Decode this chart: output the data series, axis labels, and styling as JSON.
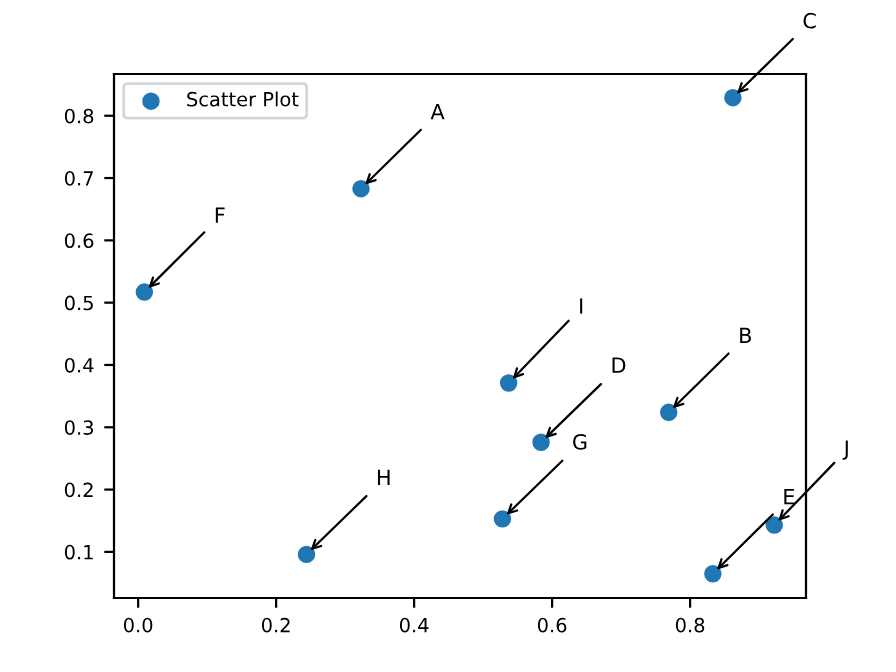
{
  "chart_data": {
    "type": "scatter",
    "x": [
      0.323,
      0.769,
      0.862,
      0.584,
      0.922,
      0.009,
      0.528,
      0.244,
      0.537,
      0.833
    ],
    "series": [
      {
        "name": "Scatter Plot",
        "color": "#1f77b4",
        "values": [
          0.683,
          0.324,
          0.829,
          0.276,
          0.143,
          0.517,
          0.153,
          0.096,
          0.371,
          0.065
        ]
      }
    ],
    "annotations": [
      {
        "text": "A",
        "x": 0.323,
        "y": 0.683
      },
      {
        "text": "B",
        "x": 0.769,
        "y": 0.324
      },
      {
        "text": "C",
        "x": 0.862,
        "y": 0.829
      },
      {
        "text": "D",
        "x": 0.584,
        "y": 0.276
      },
      {
        "text": "E",
        "x": 0.833,
        "y": 0.065
      },
      {
        "text": "F",
        "x": 0.009,
        "y": 0.517
      },
      {
        "text": "G",
        "x": 0.528,
        "y": 0.153
      },
      {
        "text": "H",
        "x": 0.244,
        "y": 0.096
      },
      {
        "text": "I",
        "x": 0.537,
        "y": 0.371
      },
      {
        "text": "J",
        "x": 0.922,
        "y": 0.143
      }
    ],
    "xlim": [
      -0.035,
      0.968
    ],
    "ylim": [
      0.026,
      0.867
    ],
    "xticks": [
      {
        "value": 0.0,
        "label": "0.0"
      },
      0.2,
      0.4,
      0.6,
      0.8
    ],
    "yticks": [
      0.1,
      0.2,
      0.3,
      0.4,
      0.5,
      0.6,
      0.7,
      0.8
    ],
    "legend": "top left",
    "marker": "circle",
    "grid": false
  }
}
